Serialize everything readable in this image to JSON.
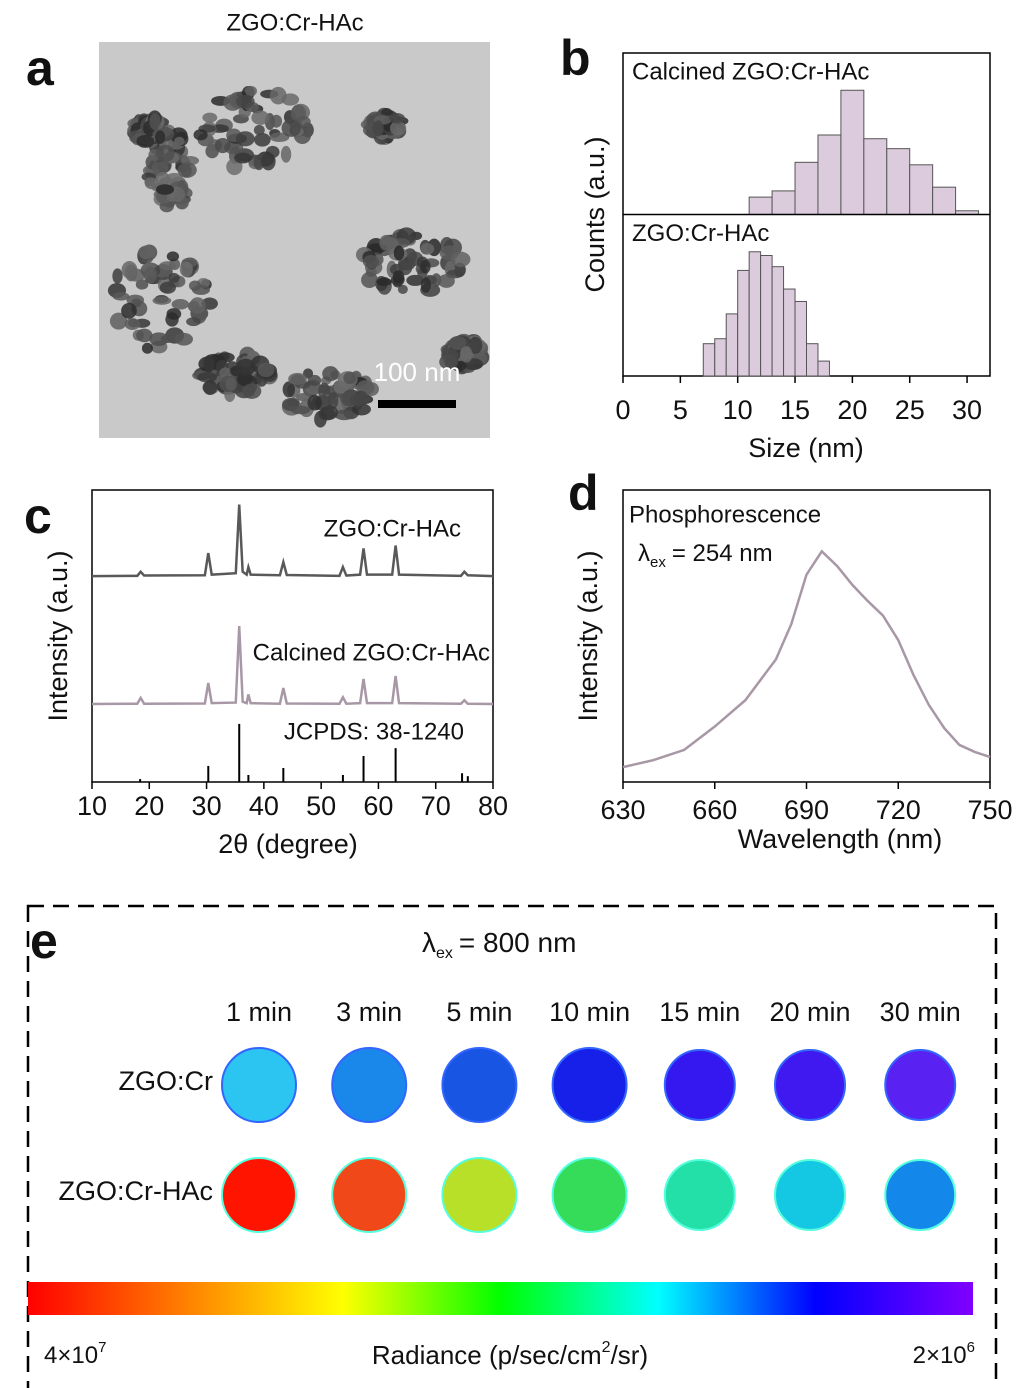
{
  "image_panel": {
    "letter": "a",
    "title": "ZGO:Cr-HAc",
    "scale_bar": "100 nm"
  },
  "chart_data": [
    {
      "type": "histogram",
      "letter": "b",
      "xlabel": "Size (nm)",
      "ylabel": "Counts (a.u.)",
      "xlim": [
        0,
        32
      ],
      "xticks": [
        0,
        5,
        10,
        15,
        20,
        25,
        30
      ],
      "ylim": [
        0,
        130
      ],
      "series": [
        {
          "name": "Calcined ZGO:Cr-HAc",
          "color": "#dccbdc",
          "bins": [
            11,
            13,
            15,
            17,
            19,
            21,
            23,
            25,
            27,
            29,
            31
          ],
          "values": [
            14,
            19,
            42,
            64,
            100,
            61,
            53,
            40,
            22,
            3
          ]
        },
        {
          "name": "ZGO:Cr-HAc",
          "color": "#dccbdc",
          "bins": [
            7,
            8,
            9,
            10,
            11,
            12,
            13,
            14,
            15,
            16,
            17,
            18
          ],
          "values": [
            26,
            30,
            50,
            85,
            100,
            97,
            88,
            70,
            60,
            26,
            12
          ]
        }
      ]
    },
    {
      "type": "line",
      "letter": "c",
      "xlabel": "2θ (degree)",
      "ylabel": "Intensity (a.u.)",
      "xlim": [
        10,
        80
      ],
      "xticks": [
        10,
        20,
        30,
        40,
        50,
        60,
        70,
        80
      ],
      "ylim": [
        0,
        100
      ],
      "x": [
        10,
        17.9,
        18.5,
        19.1,
        29.7,
        30.3,
        30.9,
        35.1,
        35.7,
        36.3,
        37.0,
        37.3,
        37.7,
        42.8,
        43.4,
        44.0,
        53.2,
        53.8,
        54.4,
        56.8,
        57.4,
        58.0,
        62.4,
        63.0,
        63.6,
        74.4,
        75.0,
        75.6,
        80
      ],
      "series": [
        {
          "name": "ZGO:Cr-HAc",
          "color": "#595959",
          "values": [
            70.5,
            70.6,
            72,
            70.7,
            70.8,
            78.4,
            71,
            71.5,
            95,
            72,
            71,
            73.6,
            71,
            70.8,
            75.3,
            70.9,
            70.6,
            73.6,
            70.7,
            71,
            80,
            71,
            71,
            81,
            71,
            70.6,
            72,
            70.8,
            70.5
          ]
        },
        {
          "name": "Calcined ZGO:Cr-HAc",
          "color": "#a898a6",
          "values": [
            26.7,
            26.8,
            28.8,
            26.8,
            26.9,
            33.9,
            27,
            27.2,
            53.4,
            27.5,
            27,
            30,
            27,
            26.8,
            32.2,
            26.9,
            26.8,
            29,
            26.8,
            27,
            35.3,
            27,
            27,
            36.3,
            27,
            26.8,
            28,
            26.8,
            26.7
          ]
        }
      ],
      "reference": {
        "name": "JCPDS: 38-1240",
        "color": "#000000",
        "x": [
          18.4,
          30.3,
          35.7,
          37.3,
          43.4,
          53.8,
          57.4,
          63.0,
          74.6,
          75.6
        ],
        "values": [
          1,
          5.5,
          19.9,
          2.4,
          4.8,
          2.4,
          8.9,
          11.6,
          3,
          2
        ]
      }
    },
    {
      "type": "line",
      "letter": "d",
      "xlabel": "Wavelength (nm)",
      "ylabel": "Intensity (a.u.)",
      "xlim": [
        630,
        750
      ],
      "xticks": [
        630,
        660,
        690,
        720,
        750
      ],
      "ylim": [
        0,
        100
      ],
      "annotation": "Phosphorescence",
      "excitation": {
        "symbol": "λ",
        "sub": "ex",
        "text": "= 254 nm"
      },
      "x": [
        630,
        640,
        650,
        660,
        670,
        680,
        685,
        690,
        695,
        700,
        705,
        710,
        715,
        720,
        725,
        730,
        735,
        740,
        745,
        750
      ],
      "series": [
        {
          "color": "#a898a6",
          "values": [
            5.1,
            7.5,
            11,
            19,
            28,
            42,
            54,
            71,
            79,
            74,
            67.5,
            62,
            57,
            48.6,
            36.6,
            26.4,
            18.5,
            12.7,
            10.3,
            8.6
          ]
        }
      ]
    }
  ],
  "imaging_panel": {
    "letter": "e",
    "excitation": {
      "symbol": "λ",
      "sub": "ex",
      "text": "= 800 nm"
    },
    "times": [
      "1 min",
      "3 min",
      "5 min",
      "10 min",
      "15 min",
      "20 min",
      "30 min"
    ],
    "rows": [
      {
        "label": "ZGO:Cr",
        "colors": [
          "#2cc4f0",
          "#1a88ea",
          "#1755e2",
          "#1620e8",
          "#3418ef",
          "#4018f0",
          "#5a22f2"
        ]
      },
      {
        "label": "ZGO:Cr-HAc",
        "colors": [
          "#ff1400",
          "#f04818",
          "#b8e028",
          "#34dc5a",
          "#22e0a8",
          "#14c8e4",
          "#1488ea"
        ]
      }
    ],
    "colorbar": {
      "colors": [
        "#ff0000",
        "#ff8000",
        "#ffff00",
        "#00ff00",
        "#00ffff",
        "#0000ff",
        "#8000ff"
      ],
      "max": {
        "base": "4×10",
        "sup": "7"
      },
      "min": {
        "base": "2×10",
        "sup": "6"
      },
      "label": {
        "before": "Radiance (p/sec/cm",
        "sup": "2",
        "after": "/sr)"
      }
    }
  }
}
